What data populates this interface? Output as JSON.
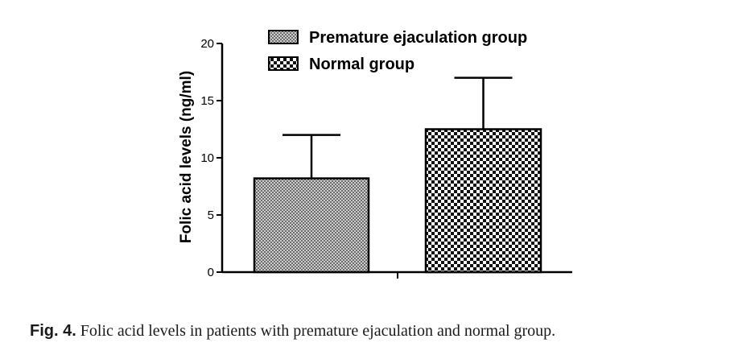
{
  "chart_data": {
    "type": "bar",
    "title": "",
    "xlabel": "",
    "ylabel": "Folic acid levels (ng/ml)",
    "ylim": [
      0,
      20
    ],
    "yticks": [
      0,
      5,
      10,
      15,
      20
    ],
    "grid": false,
    "legend_position": "top",
    "series": [
      {
        "name": "Premature ejaculation group",
        "value": 8.2,
        "error": 3.8
      },
      {
        "name": "Normal group",
        "value": 12.5,
        "error": 4.5
      }
    ]
  },
  "caption": {
    "label": "Fig. 4.",
    "text": "Folic acid levels in patients with premature ejaculation and normal group."
  }
}
